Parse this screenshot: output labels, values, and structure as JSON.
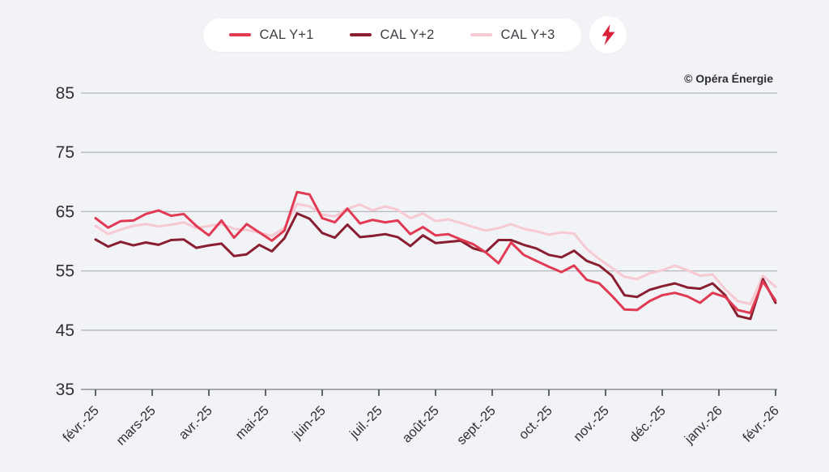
{
  "page": {
    "background": "#f1f3f6"
  },
  "legend": {
    "items": [
      {
        "label": "CAL Y+1",
        "color": "#e13a52"
      },
      {
        "label": "CAL Y+2",
        "color": "#8a1e31"
      },
      {
        "label": "CAL Y+3",
        "color": "#f7c9d2"
      }
    ],
    "brand_icon": "lightning-bolt-icon",
    "brand_icon_color": "#d92038"
  },
  "attribution": "© Opéra Énergie",
  "chart_data": {
    "type": "line",
    "title": "",
    "xlabel": "",
    "ylabel": "",
    "grid": true,
    "legend_position": "top-center",
    "x_axis": {
      "labels": [
        "févr.-25",
        "mars-25",
        "avr.-25",
        "mai-25",
        "juin-25",
        "juil.-25",
        "août-25",
        "sept.-25",
        "oct.-25",
        "nov.-25",
        "déc.-25",
        "janv.-26",
        "févr.-26"
      ],
      "min_month_index": 0,
      "max_month_index": 12
    },
    "y_axis": {
      "ticks": [
        35,
        45,
        55,
        65,
        75,
        85
      ],
      "min": 35,
      "max": 85
    },
    "sampling_note": "55 evenly spaced samples per series from févr.-25 to févr.-26 (values estimated from gridlines)",
    "series": [
      {
        "name": "CAL Y+1",
        "color": "#e13a52",
        "values": [
          63.9,
          62.3,
          63.4,
          63.5,
          64.6,
          65.2,
          64.3,
          64.6,
          62.6,
          61.0,
          63.5,
          60.6,
          62.9,
          61.5,
          60.1,
          61.8,
          68.3,
          67.9,
          63.9,
          63.2,
          65.5,
          63.0,
          63.6,
          63.2,
          63.5,
          61.2,
          62.4,
          61.0,
          61.2,
          60.3,
          59.5,
          58.1,
          56.3,
          59.8,
          57.7,
          56.7,
          55.7,
          54.8,
          55.9,
          53.5,
          52.9,
          50.8,
          48.5,
          48.4,
          49.9,
          50.9,
          51.3,
          50.7,
          49.6,
          51.3,
          50.6,
          48.4,
          47.9,
          53.2,
          50.0
        ]
      },
      {
        "name": "CAL Y+2",
        "color": "#8a1e31",
        "values": [
          60.3,
          59.1,
          59.9,
          59.3,
          59.8,
          59.4,
          60.2,
          60.3,
          58.9,
          59.3,
          59.6,
          57.5,
          57.8,
          59.4,
          58.3,
          60.5,
          64.7,
          63.8,
          61.4,
          60.6,
          62.8,
          60.7,
          60.9,
          61.2,
          60.7,
          59.2,
          61.0,
          59.7,
          59.9,
          60.1,
          58.8,
          58.2,
          60.2,
          60.2,
          59.4,
          58.8,
          57.7,
          57.3,
          58.4,
          56.7,
          55.9,
          54.2,
          50.9,
          50.6,
          51.8,
          52.4,
          52.9,
          52.2,
          52.0,
          52.9,
          50.9,
          47.4,
          46.9,
          53.6,
          49.6
        ]
      },
      {
        "name": "CAL Y+3",
        "color": "#f7c9d2",
        "values": [
          62.6,
          61.2,
          62.0,
          62.6,
          62.9,
          62.5,
          62.8,
          63.2,
          62.2,
          62.6,
          62.9,
          62.1,
          61.9,
          61.5,
          60.9,
          62.3,
          66.3,
          65.9,
          64.5,
          64.2,
          65.5,
          66.2,
          65.2,
          65.9,
          65.3,
          63.9,
          64.7,
          63.4,
          63.7,
          63.1,
          62.4,
          61.8,
          62.2,
          62.9,
          62.1,
          61.7,
          61.1,
          61.5,
          61.3,
          58.7,
          57.0,
          55.5,
          54.0,
          53.6,
          54.6,
          55.1,
          55.9,
          55.1,
          54.2,
          54.4,
          51.9,
          49.9,
          49.4,
          54.2,
          52.3
        ]
      }
    ]
  }
}
